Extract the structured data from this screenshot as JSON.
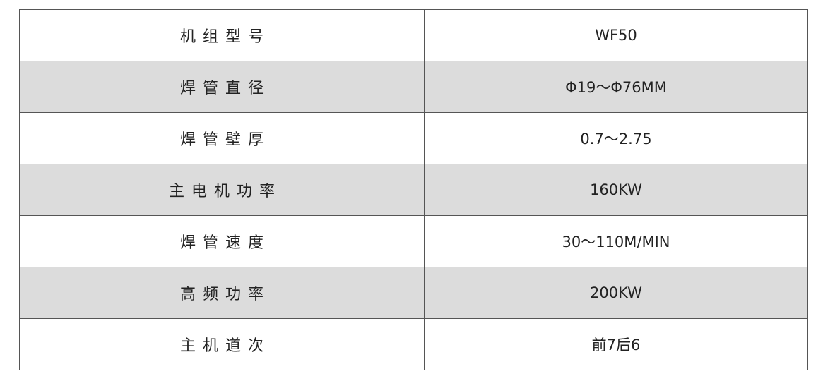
{
  "table": {
    "rows": [
      [
        "机组型号",
        "WF50"
      ],
      [
        "焊管直径",
        "Φ19～Φ76MM"
      ],
      [
        "焊管壁厚",
        "0.7～2.75"
      ],
      [
        "主电机功率",
        "160KW"
      ],
      [
        "焊管速度",
        "30～110M/MIN"
      ],
      [
        "高频功率",
        "200KW"
      ],
      [
        "主机道次",
        "前7后6"
      ]
    ]
  }
}
